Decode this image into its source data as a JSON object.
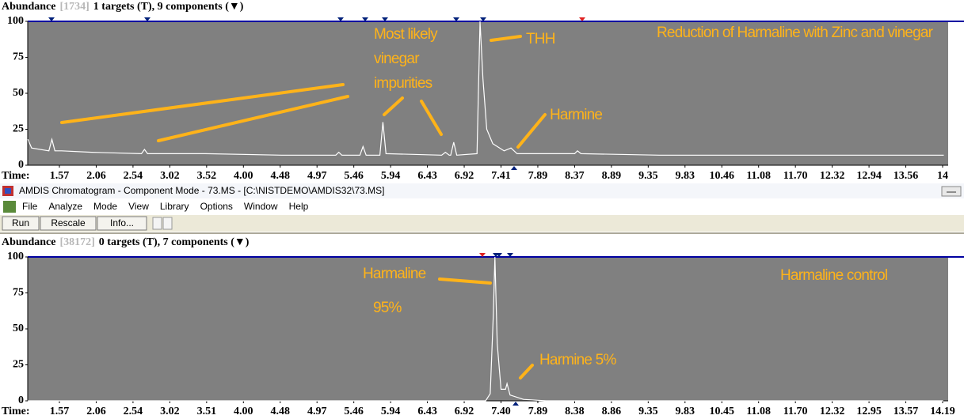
{
  "window": {
    "title": "AMDIS Chromatogram - Component Mode - 73.MS - [C:\\NISTDEMO\\AMDIS32\\73.MS]",
    "menu": [
      "File",
      "Analyze",
      "Mode",
      "View",
      "Library",
      "Options",
      "Window",
      "Help"
    ],
    "buttons": [
      "Run",
      "Rescale",
      "Info..."
    ]
  },
  "chart_data": [
    {
      "type": "line",
      "header": {
        "label": "Abundance",
        "count": "[1734]",
        "info": "1 targets (T), 9 components (▼)"
      },
      "x_label": "Time:",
      "x": [
        1.15,
        1.2,
        1.43,
        1.47,
        1.51,
        1.6,
        2.0,
        2.65,
        2.69,
        2.73,
        3.5,
        4.5,
        5.22,
        5.26,
        5.3,
        5.54,
        5.58,
        5.62,
        5.8,
        5.84,
        5.88,
        6.62,
        6.67,
        6.72,
        6.74,
        6.78,
        6.82,
        7.09,
        7.13,
        7.17,
        7.22,
        7.3,
        7.45,
        7.54,
        7.62,
        8.37,
        8.41,
        8.46,
        9.5,
        11.0,
        12.5,
        14.2
      ],
      "series": [
        {
          "color": "#ffffff",
          "values": [
            18,
            12,
            10,
            18,
            10,
            10,
            9,
            8,
            11,
            8,
            8,
            7,
            7,
            9,
            7,
            7,
            13,
            7,
            7,
            30,
            8,
            7,
            9,
            7,
            7,
            16,
            7,
            8,
            100,
            60,
            25,
            15,
            10,
            12,
            8,
            8,
            10,
            8,
            7,
            7,
            7,
            7
          ]
        }
      ],
      "xlim": [
        1.15,
        14.2
      ],
      "ylim": [
        0,
        100
      ],
      "xticks": [
        1.57,
        2.06,
        2.54,
        3.02,
        3.52,
        {
          "value": 4.0,
          "label": "4.00"
        },
        4.48,
        4.97,
        5.46,
        5.94,
        6.43,
        6.92,
        7.41,
        7.89,
        8.37,
        8.89,
        9.35,
        9.83,
        10.46,
        11.08,
        {
          "value": 11.7,
          "label": "11.70"
        },
        12.32,
        12.94,
        13.56,
        {
          "value": 14.18,
          "label": "14"
        }
      ],
      "yticks": [
        0,
        25,
        50,
        75,
        100
      ],
      "annotations": [
        "Most likely",
        "vinegar",
        "impurities",
        "THH",
        "Harmine",
        "Reduction of Harmaline with Zinc and vinegar"
      ]
    },
    {
      "type": "line",
      "header": {
        "label": "Abundance",
        "count": "[38172]",
        "info": "0 targets (T), 7 components (▼)"
      },
      "x_label": "Time:",
      "x": [
        1.15,
        7.2,
        7.26,
        7.3,
        7.32,
        7.35,
        7.4,
        7.46,
        7.48,
        7.52,
        7.7,
        8.0,
        14.2
      ],
      "series": [
        {
          "color": "#ffffff",
          "values": [
            0,
            0,
            5,
            60,
            100,
            40,
            8,
            8,
            12,
            4,
            1,
            0,
            0
          ]
        }
      ],
      "xlim": [
        1.15,
        14.2
      ],
      "ylim": [
        0,
        100
      ],
      "xticks": [
        1.57,
        2.06,
        2.54,
        3.02,
        3.51,
        {
          "value": 4.0,
          "label": "4.00"
        },
        4.48,
        4.97,
        5.46,
        5.94,
        6.43,
        6.92,
        {
          "value": 7.4,
          "label": "7.40"
        },
        7.89,
        8.38,
        8.86,
        9.35,
        9.83,
        10.45,
        11.08,
        {
          "value": 11.7,
          "label": "11.70"
        },
        12.32,
        12.95,
        13.57,
        14.19
      ],
      "yticks": [
        0,
        25,
        50,
        75,
        100
      ],
      "annotations": [
        "Harmaline",
        "95%",
        "Harmine  5%",
        "Harmaline control"
      ]
    }
  ]
}
